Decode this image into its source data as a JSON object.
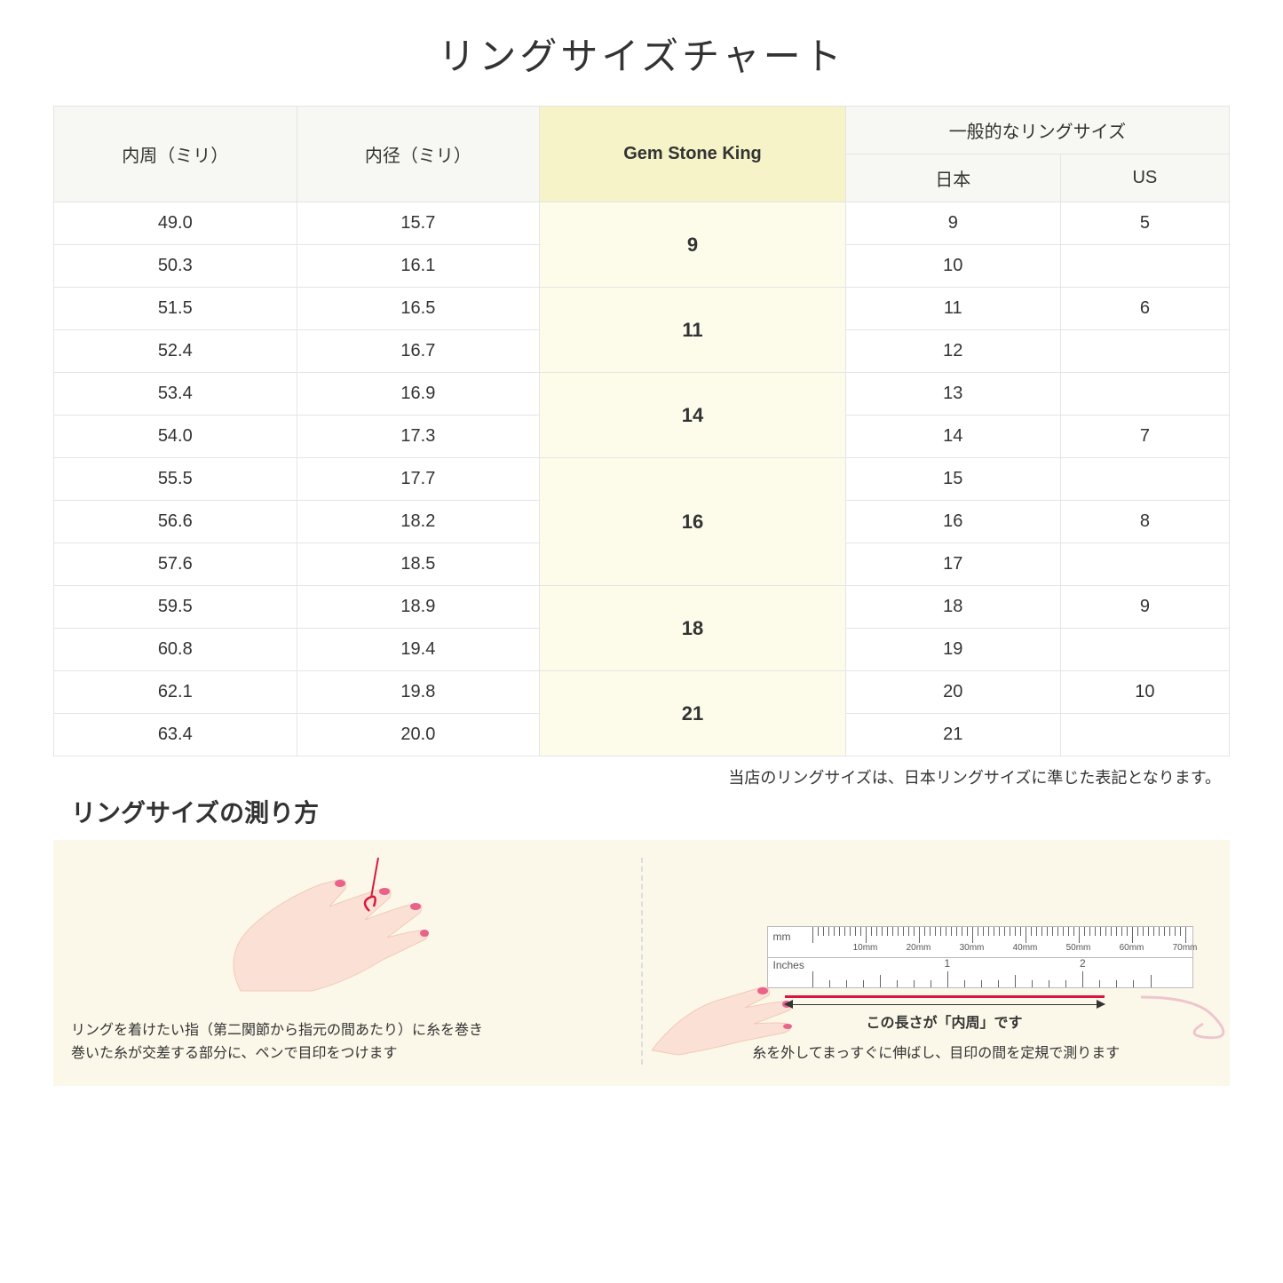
{
  "title": "リングサイズチャート",
  "columns": {
    "inner_circ": "内周（ミリ）",
    "inner_dia": "内径（ミリ）",
    "gsk": "Gem Stone King",
    "common_header": "一般的なリングサイズ",
    "jp": "日本",
    "us": "US"
  },
  "groups": [
    {
      "gsk": "9",
      "rows": [
        {
          "circ": "49.0",
          "dia": "15.7",
          "jp": "9",
          "us": "5"
        },
        {
          "circ": "50.3",
          "dia": "16.1",
          "jp": "10",
          "us": ""
        }
      ]
    },
    {
      "gsk": "11",
      "rows": [
        {
          "circ": "51.5",
          "dia": "16.5",
          "jp": "11",
          "us": "6"
        },
        {
          "circ": "52.4",
          "dia": "16.7",
          "jp": "12",
          "us": ""
        }
      ]
    },
    {
      "gsk": "14",
      "rows": [
        {
          "circ": "53.4",
          "dia": "16.9",
          "jp": "13",
          "us": ""
        },
        {
          "circ": "54.0",
          "dia": "17.3",
          "jp": "14",
          "us": "7"
        }
      ]
    },
    {
      "gsk": "16",
      "rows": [
        {
          "circ": "55.5",
          "dia": "17.7",
          "jp": "15",
          "us": ""
        },
        {
          "circ": "56.6",
          "dia": "18.2",
          "jp": "16",
          "us": "8"
        },
        {
          "circ": "57.6",
          "dia": "18.5",
          "jp": "17",
          "us": ""
        }
      ]
    },
    {
      "gsk": "18",
      "rows": [
        {
          "circ": "59.5",
          "dia": "18.9",
          "jp": "18",
          "us": "9"
        },
        {
          "circ": "60.8",
          "dia": "19.4",
          "jp": "19",
          "us": ""
        }
      ]
    },
    {
      "gsk": "21",
      "rows": [
        {
          "circ": "62.1",
          "dia": "19.8",
          "jp": "20",
          "us": "10"
        },
        {
          "circ": "63.4",
          "dia": "20.0",
          "jp": "21",
          "us": ""
        }
      ]
    }
  ],
  "footnote": "当店のリングサイズは、日本リングサイズに準じた表記となります。",
  "how_title": "リングサイズの測り方",
  "instr_left": "リングを着けたい指（第二関節から指元の間あたり）に糸を巻き\n巻いた糸が交差する部分に、ペンで目印をつけます",
  "instr_right": "糸を外してまっすぐに伸ばし、目印の間を定規で測ります",
  "arrow_label": "この長さが「内周」です",
  "ruler": {
    "mm_label": "mm",
    "in_label": "Inches",
    "mm_marks": [
      "10mm",
      "20mm",
      "30mm",
      "40mm",
      "50mm",
      "60mm",
      "70mm"
    ],
    "in_marks": [
      "1",
      "2"
    ]
  },
  "colors": {
    "header_bg": "#f7f7f3",
    "gsk_header_bg": "#f5f3c7",
    "gsk_cell_bg": "#fdfceb",
    "border": "#e5e5e5",
    "instr_bg": "#fbf8e9",
    "skin": "#fbe1d5",
    "skin_shadow": "#f3c9b8",
    "nail": "#e8628a",
    "thread": "#d9163f"
  }
}
